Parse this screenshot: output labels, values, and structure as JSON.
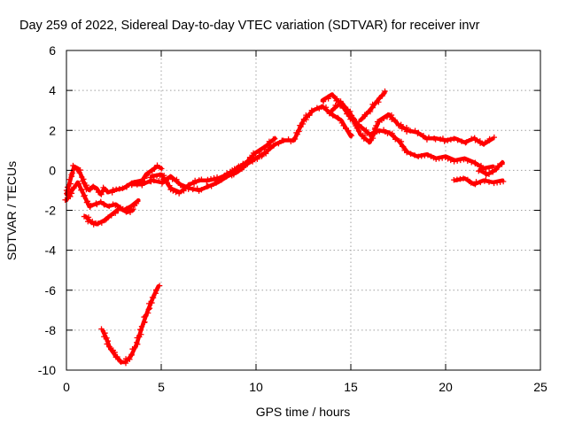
{
  "chart_data": {
    "type": "scatter",
    "title": "Day 259 of 2022, Sidereal Day-to-day VTEC variation (SDTVAR) for receiver invr",
    "xlabel": "GPS time / hours",
    "ylabel": "SDTVAR / TECUs",
    "xlim": [
      0,
      25
    ],
    "ylim": [
      -10,
      6
    ],
    "xticks": [
      0,
      5,
      10,
      15,
      20,
      25
    ],
    "yticks": [
      -10,
      -8,
      -6,
      -4,
      -2,
      0,
      2,
      4,
      6
    ],
    "xtick_labels": [
      "0",
      "5",
      "10",
      "15",
      "20",
      "25"
    ],
    "ytick_labels": [
      "-10",
      "-8",
      "-6",
      "-4",
      "-2",
      "0",
      "2",
      "4",
      "6"
    ],
    "grid": true,
    "marker": "plus",
    "color": "#ff0000",
    "series": [
      {
        "name": "satellite-track-1",
        "x": [
          0.0,
          0.2,
          0.4,
          0.6,
          0.8,
          1.0,
          1.2,
          1.4,
          1.6,
          1.8,
          2.0,
          2.2,
          2.5,
          3.0,
          3.5,
          4.0,
          4.2,
          4.5,
          4.8,
          5.0
        ],
        "y": [
          -1.2,
          -0.5,
          0.2,
          0.1,
          -0.3,
          -0.8,
          -1.0,
          -0.8,
          -0.9,
          -1.2,
          -0.9,
          -1.1,
          -1.0,
          -0.9,
          -0.6,
          -0.5,
          -0.2,
          0.0,
          0.2,
          0.1
        ]
      },
      {
        "name": "satellite-track-2",
        "x": [
          0.0,
          0.3,
          0.6,
          0.9,
          1.2,
          1.5,
          1.8,
          2.2,
          2.6,
          3.0,
          3.4,
          3.8
        ],
        "y": [
          -1.5,
          -1.0,
          -0.6,
          -1.2,
          -1.8,
          -1.7,
          -1.6,
          -1.8,
          -1.7,
          -2.0,
          -1.8,
          -1.5
        ]
      },
      {
        "name": "satellite-track-3",
        "x": [
          1.0,
          1.3,
          1.6,
          2.0,
          2.4,
          2.8,
          3.0,
          3.2,
          3.5
        ],
        "y": [
          -2.3,
          -2.6,
          -2.7,
          -2.5,
          -2.2,
          -1.9,
          -2.0,
          -2.1,
          -2.0
        ]
      },
      {
        "name": "satellite-track-4",
        "x": [
          3.5,
          4.0,
          4.5,
          5.0,
          5.5,
          6.0,
          6.5,
          7.0,
          7.5,
          8.0,
          8.5,
          9.0,
          9.5,
          10.0,
          10.5,
          11.0,
          11.5,
          12.0,
          12.5,
          13.0,
          13.5,
          14.0,
          14.5,
          15.0
        ],
        "y": [
          -0.7,
          -0.7,
          -0.5,
          -0.6,
          -0.3,
          -0.7,
          -0.9,
          -1.0,
          -0.8,
          -0.6,
          -0.3,
          -0.1,
          0.3,
          0.6,
          0.9,
          1.3,
          1.5,
          1.5,
          2.5,
          3.0,
          3.2,
          2.8,
          2.5,
          1.7
        ]
      },
      {
        "name": "satellite-track-5",
        "x": [
          4.5,
          5.0,
          5.5,
          6.0,
          6.5,
          7.0,
          7.5,
          8.0,
          8.5,
          9.0,
          9.5,
          10.0,
          10.5,
          11.0
        ],
        "y": [
          -0.3,
          -0.2,
          -0.9,
          -1.1,
          -0.7,
          -0.5,
          -0.5,
          -0.4,
          -0.2,
          0.1,
          0.4,
          0.9,
          1.2,
          1.6
        ]
      },
      {
        "name": "satellite-track-6",
        "x": [
          13.5,
          14.0,
          14.5,
          15.0,
          15.5,
          16.0,
          16.5,
          17.0,
          17.5,
          18.0,
          18.5,
          19.0,
          19.5,
          20.0,
          20.5,
          21.0,
          21.5,
          22.0,
          22.5
        ],
        "y": [
          3.5,
          3.8,
          3.3,
          2.6,
          2.2,
          1.8,
          2.0,
          1.9,
          1.5,
          0.9,
          0.7,
          0.8,
          0.6,
          0.7,
          0.5,
          0.6,
          0.4,
          0.1,
          0.2
        ]
      },
      {
        "name": "satellite-track-7",
        "x": [
          14.0,
          14.5,
          15.0,
          15.5,
          16.0,
          16.5,
          17.0,
          17.5,
          18.0,
          18.5,
          19.0,
          19.5,
          20.0,
          20.5,
          21.0,
          21.5,
          22.0,
          22.5
        ],
        "y": [
          3.0,
          3.4,
          2.8,
          1.8,
          1.4,
          2.5,
          2.8,
          2.3,
          2.0,
          1.9,
          1.6,
          1.6,
          1.5,
          1.6,
          1.4,
          1.6,
          1.3,
          1.6
        ]
      },
      {
        "name": "satellite-track-8",
        "x": [
          15.5,
          16.0,
          16.5,
          16.8
        ],
        "y": [
          2.5,
          3.0,
          3.6,
          3.9
        ]
      },
      {
        "name": "satellite-track-9",
        "x": [
          20.5,
          21.0,
          21.5,
          22.0,
          22.5,
          23.0
        ],
        "y": [
          -0.5,
          -0.4,
          -0.7,
          -0.5,
          -0.6,
          -0.5
        ]
      },
      {
        "name": "satellite-track-10",
        "x": [
          21.8,
          22.2,
          22.6,
          23.0
        ],
        "y": [
          0.0,
          -0.2,
          0.0,
          0.4
        ]
      },
      {
        "name": "satellite-track-11",
        "x": [
          1.9,
          2.1,
          2.3,
          2.6,
          2.9,
          3.1,
          3.4,
          3.7,
          4.0,
          4.3,
          4.6,
          4.85
        ],
        "y": [
          -8.0,
          -8.4,
          -8.9,
          -9.3,
          -9.6,
          -9.6,
          -9.3,
          -8.7,
          -7.8,
          -7.0,
          -6.3,
          -5.8
        ]
      }
    ]
  }
}
